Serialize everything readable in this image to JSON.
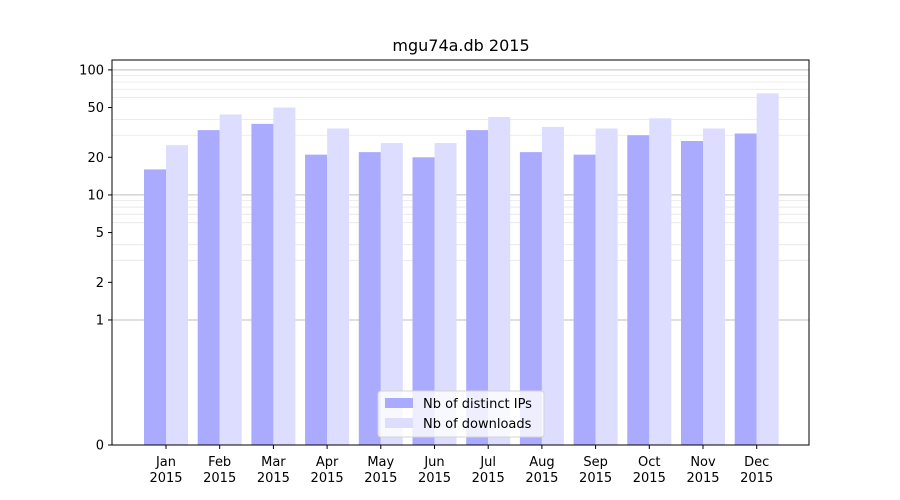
{
  "chart_data": {
    "type": "bar",
    "title": "mgu74a.db 2015",
    "categories": [
      "Jan\n2015",
      "Feb\n2015",
      "Mar\n2015",
      "Apr\n2015",
      "May\n2015",
      "Jun\n2015",
      "Jul\n2015",
      "Aug\n2015",
      "Sep\n2015",
      "Oct\n2015",
      "Nov\n2015",
      "Dec\n2015"
    ],
    "series": [
      {
        "name": "Nb of distinct IPs",
        "color": "#aaaaff",
        "values": [
          16,
          33,
          37,
          21,
          22,
          20,
          33,
          22,
          21,
          30,
          27,
          31
        ]
      },
      {
        "name": "Nb of downloads",
        "color": "#ddddff",
        "values": [
          25,
          44,
          50,
          34,
          26,
          26,
          42,
          35,
          34,
          41,
          34,
          65
        ]
      }
    ],
    "y_scale": "symlog",
    "y_ticks": [
      0,
      1,
      2,
      5,
      10,
      20,
      50,
      100
    ],
    "ylim": [
      0,
      120
    ],
    "grid": true,
    "legend_position": "lower-center",
    "xlabel": "",
    "ylabel": ""
  }
}
